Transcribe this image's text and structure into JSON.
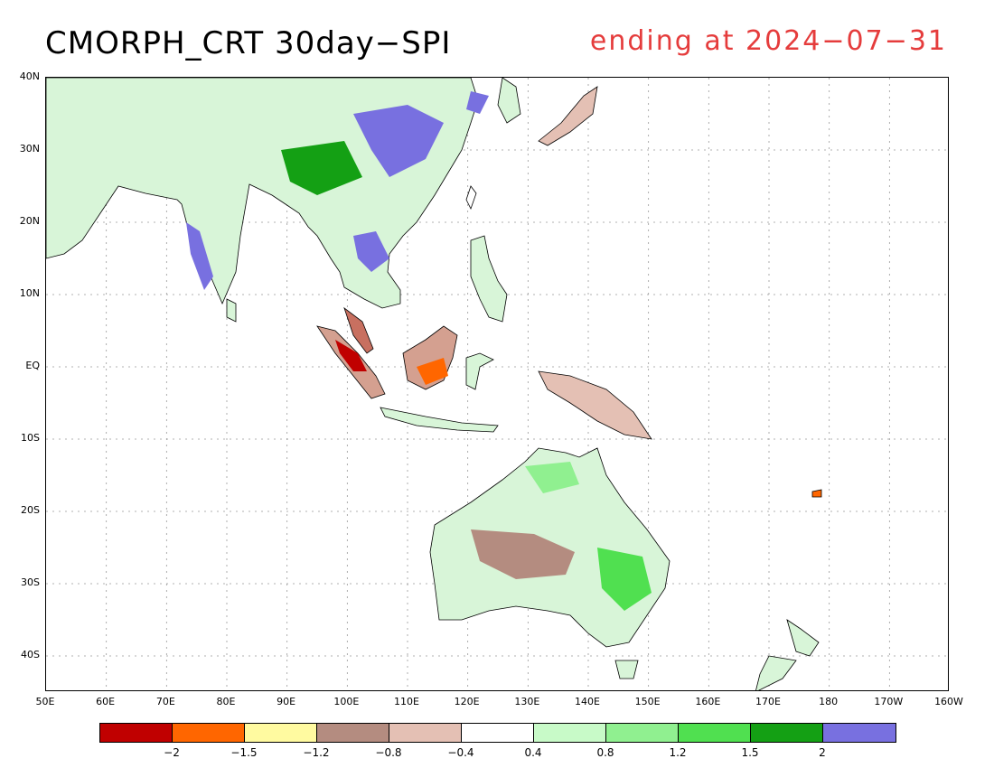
{
  "title": {
    "main": "CMORPH_CRT 30day−SPI",
    "ending": "ending at 2024−07−31",
    "ending_color": "#e53c3c"
  },
  "map": {
    "lon_range": [
      50,
      200
    ],
    "lat_range": [
      -45,
      40
    ],
    "lat_ticks": [
      {
        "value": 40,
        "label": "40N"
      },
      {
        "value": 30,
        "label": "30N"
      },
      {
        "value": 20,
        "label": "20N"
      },
      {
        "value": 10,
        "label": "10N"
      },
      {
        "value": 0,
        "label": "EQ"
      },
      {
        "value": -10,
        "label": "10S"
      },
      {
        "value": -20,
        "label": "20S"
      },
      {
        "value": -30,
        "label": "30S"
      },
      {
        "value": -40,
        "label": "40S"
      }
    ],
    "lon_ticks": [
      {
        "value": 50,
        "label": "50E"
      },
      {
        "value": 60,
        "label": "60E"
      },
      {
        "value": 70,
        "label": "70E"
      },
      {
        "value": 80,
        "label": "80E"
      },
      {
        "value": 90,
        "label": "90E"
      },
      {
        "value": 100,
        "label": "100E"
      },
      {
        "value": 110,
        "label": "110E"
      },
      {
        "value": 120,
        "label": "120E"
      },
      {
        "value": 130,
        "label": "130E"
      },
      {
        "value": 140,
        "label": "140E"
      },
      {
        "value": 150,
        "label": "150E"
      },
      {
        "value": 160,
        "label": "160E"
      },
      {
        "value": 170,
        "label": "170E"
      },
      {
        "value": 180,
        "label": "180"
      },
      {
        "value": 190,
        "label": "170W"
      },
      {
        "value": 200,
        "label": "160W"
      }
    ]
  },
  "colorbar": {
    "colors": [
      "#c00000",
      "#ff6600",
      "#fffaa0",
      "#b48c80",
      "#e4c0b4",
      "#ffffff",
      "#c8fac8",
      "#90f090",
      "#50e050",
      "#14a014",
      "#7870e0"
    ],
    "labels": [
      "−2",
      "−1.5",
      "−1.2",
      "−0.8",
      "−0.4",
      "0.4",
      "0.8",
      "1.2",
      "1.5",
      "2"
    ]
  }
}
